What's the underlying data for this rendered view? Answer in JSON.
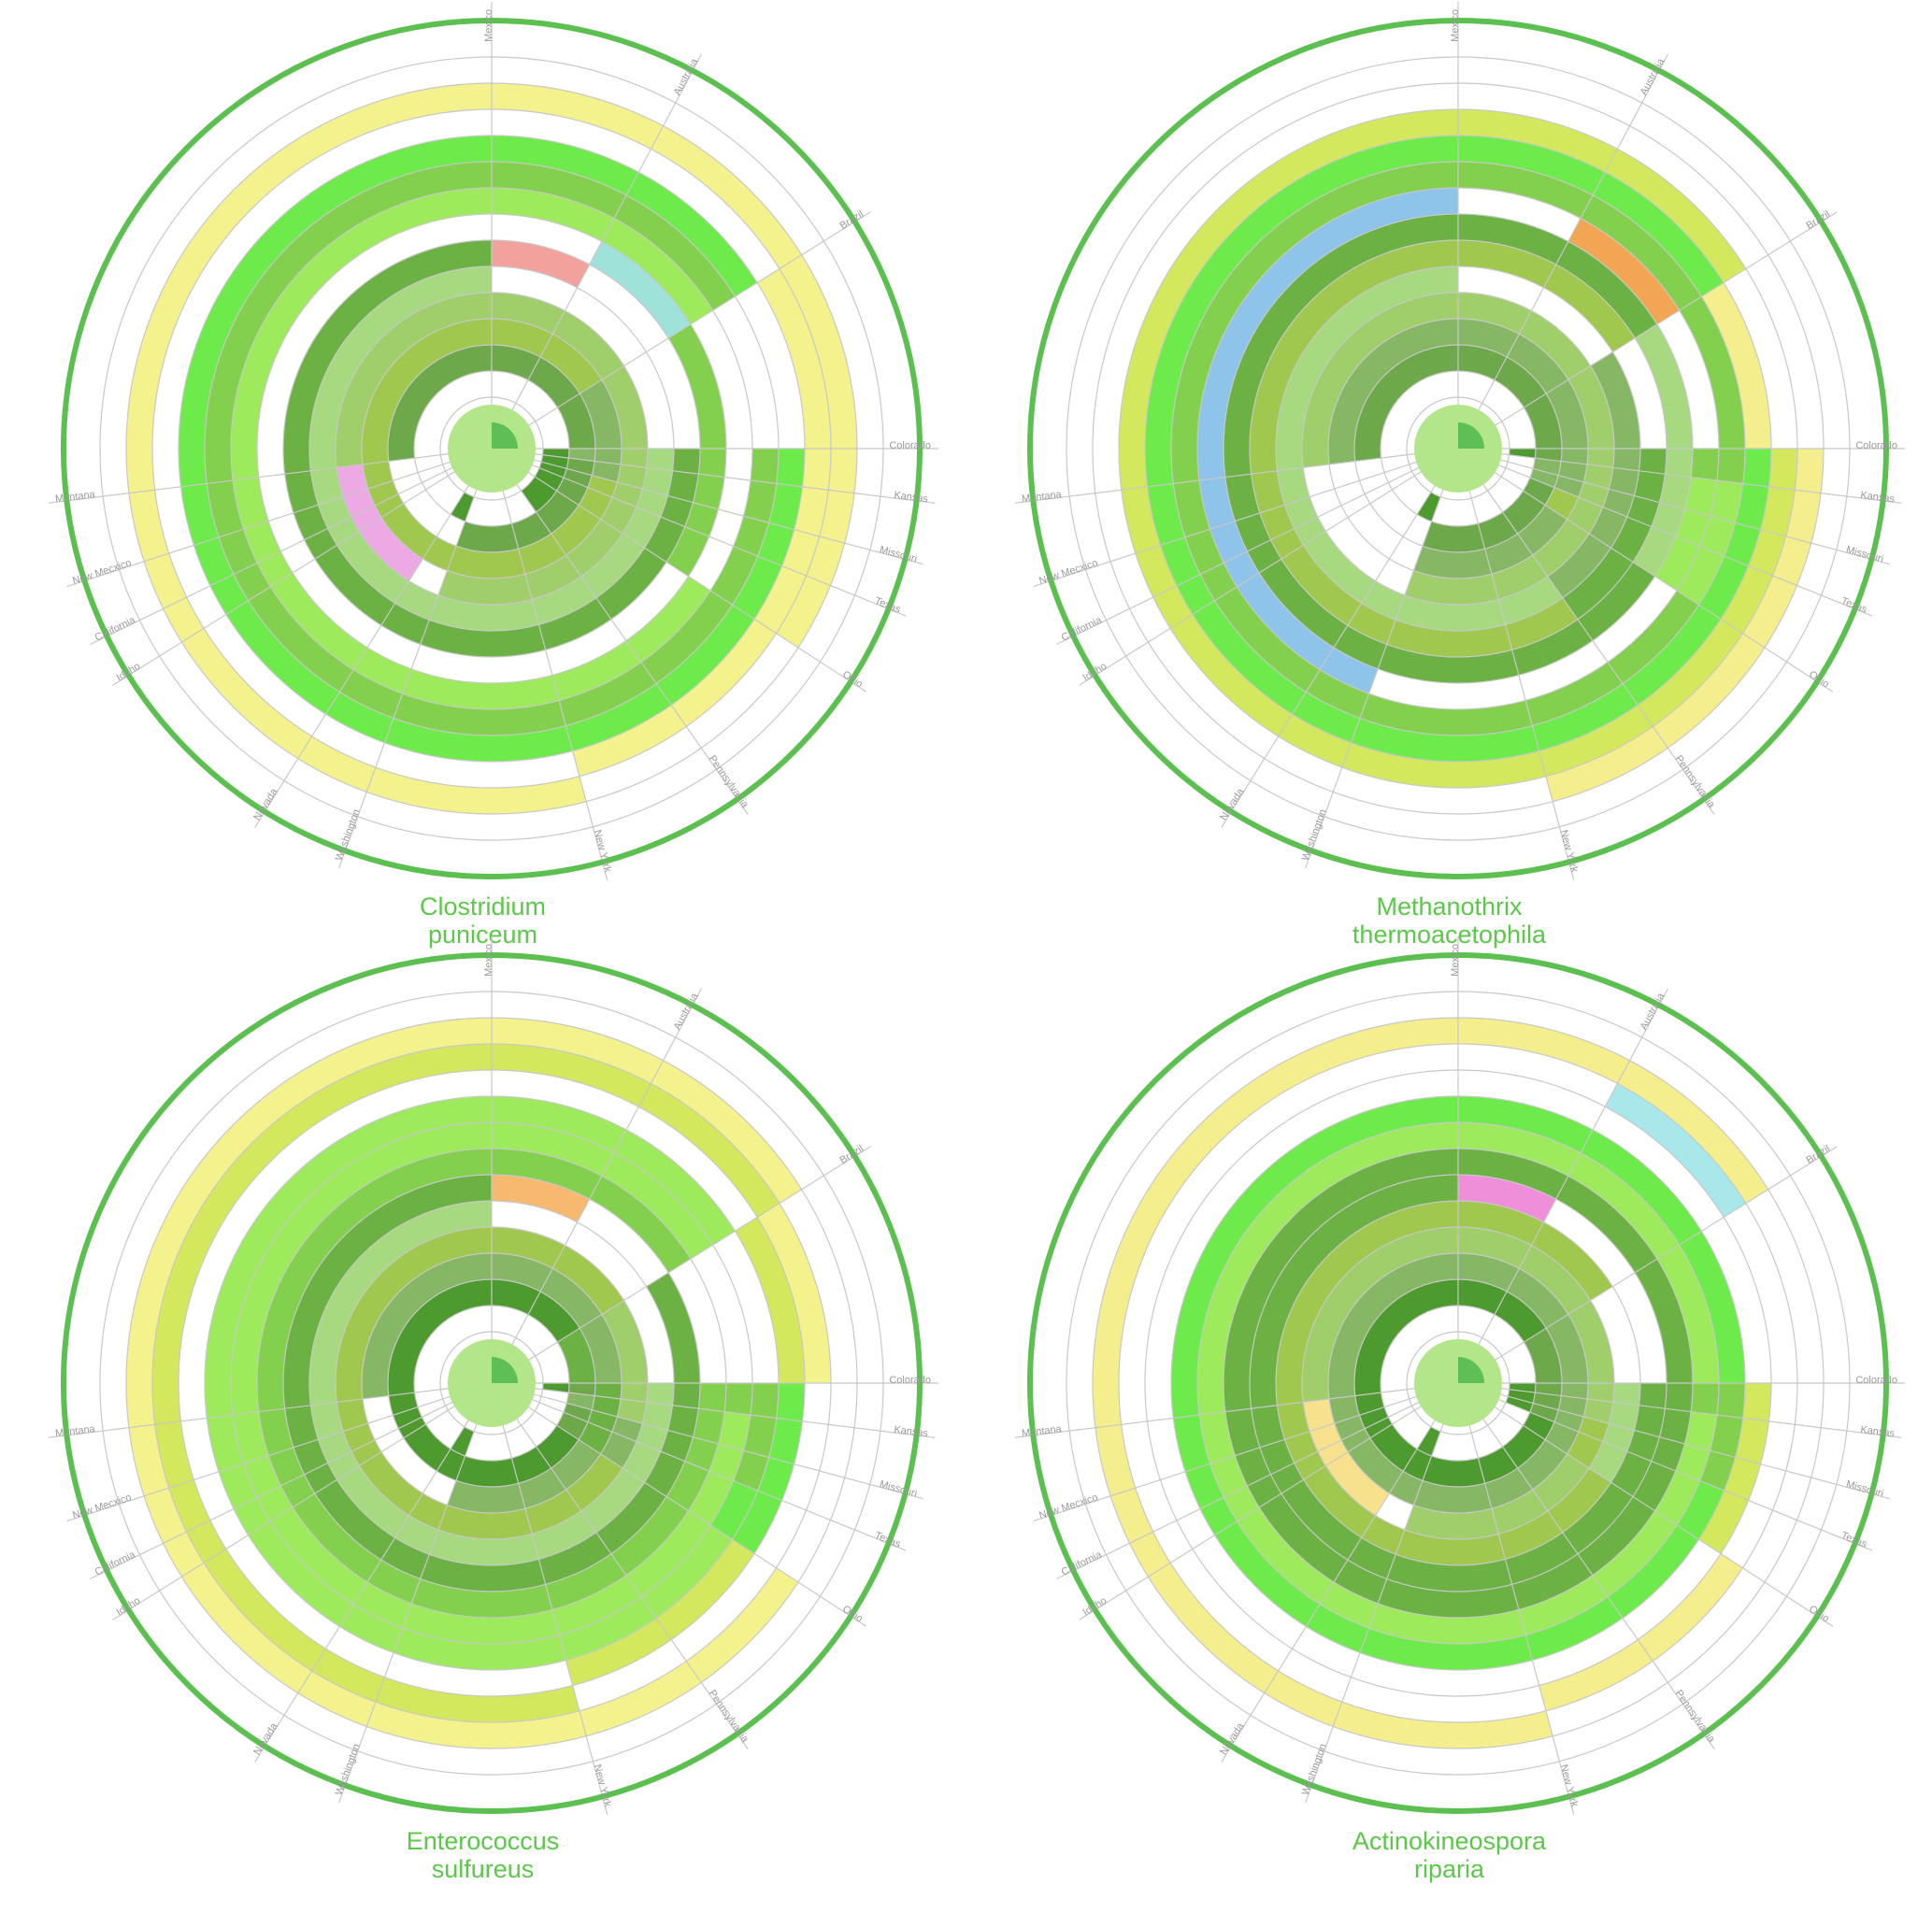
{
  "colors": {
    "outer_ring": "#5cc050",
    "grid": "#c8c8c8",
    "hub": "#b3e58b",
    "hub_marker": "#5fbf57",
    "title": "#5cc84a",
    "label": "#9a9a9a"
  },
  "categories": [
    "Mexico",
    "Australia",
    "Brazil",
    "Colorado",
    "Kansas",
    "Missouri",
    "Texas",
    "Ohio",
    "Pennsylvania",
    "New York",
    "Montana",
    "New Mecxico",
    "California",
    "Idaho",
    "Nevada",
    "Washington"
  ],
  "charts": [
    {
      "title_line1": "Clostridium",
      "title_line2": "puniceum",
      "arcs": [
        {
          "from": "Mexico",
          "to": "Australia",
          "ring": 6,
          "color": "#f2a19d"
        },
        {
          "from": "Australia",
          "to": "Brazil",
          "ring": 7,
          "color": "#9fe2da"
        },
        {
          "from": "Nevada",
          "to": "Mexico",
          "ring": 4,
          "color": "#eca9e4"
        },
        {
          "from": "Washington",
          "to": "Nevada",
          "ring": 1,
          "color": "#4d9a2e"
        },
        {
          "from": "Montana",
          "to": "Washington",
          "ring": 2,
          "color": "#6da84a"
        },
        {
          "from": "Montana",
          "to": "Washington",
          "ring": 3,
          "color": "#86b765"
        },
        {
          "from": "Montana",
          "to": "Washington",
          "ring": 4,
          "color": "#a0ce6a"
        },
        {
          "from": "Colorado",
          "to": "Kansas",
          "ring": 2,
          "color": "#86b765"
        },
        {
          "from": "Colorado",
          "to": "Texas",
          "ring": 1,
          "color": "#4d9a2e"
        },
        {
          "from": "Texas",
          "to": "Pennsylvania",
          "ring": 1,
          "color": "#4d9a2e"
        },
        {
          "from": "Kansas",
          "to": "Montana",
          "ring": 5,
          "color": "#a6d980"
        },
        {
          "from": "Kansas",
          "to": "Montana",
          "ring": 6,
          "color": "#6cb144"
        },
        {
          "from": "Missouri",
          "to": "Texas",
          "ring": 3,
          "color": "#a0c84e"
        },
        {
          "from": "Texas",
          "to": "Brazil",
          "ring": 3,
          "color": "#a0c84e"
        },
        {
          "from": "Colorado",
          "to": "Mexico",
          "ring": 5,
          "color": "#a6d980"
        },
        {
          "from": "Colorado",
          "to": "Mexico",
          "ring": 6,
          "color": "#6cb144"
        },
        {
          "from": "Brazil",
          "to": "Colorado",
          "ring": 7,
          "color": "#82d04e"
        },
        {
          "from": "Colorado",
          "to": "Kansas",
          "ring": 7,
          "color": "#82d04e"
        },
        {
          "from": "Kansas",
          "to": "Ohio",
          "ring": 7,
          "color": "#82d04e"
        },
        {
          "from": "Ohio",
          "to": "Brazil",
          "ring": 8,
          "color": "#9deb5c"
        },
        {
          "from": "Colorado",
          "to": "Kansas",
          "ring": 9,
          "color": "#82d04e"
        },
        {
          "from": "Kansas",
          "to": "Ohio",
          "ring": 9,
          "color": "#82d04e"
        },
        {
          "from": "Ohio",
          "to": "Brazil",
          "ring": 9,
          "color": "#82d04e"
        },
        {
          "from": "Colorado",
          "to": "Texas",
          "ring": 10,
          "color": "#6deb4a"
        },
        {
          "from": "Texas",
          "to": "Brazil",
          "ring": 10,
          "color": "#6deb4a"
        },
        {
          "from": "Brazil",
          "to": "Ohio",
          "ring": 11,
          "color": "#f4f28c"
        },
        {
          "from": "Ohio",
          "to": "New York",
          "ring": 11,
          "color": "#f4f28c"
        },
        {
          "from": "New York",
          "to": "Ohio",
          "ring": 12,
          "color": "#f4f28c"
        }
      ]
    },
    {
      "title_line1": "Methanothrix",
      "title_line2": "thermoacetophila",
      "arcs": [
        {
          "from": "Washington",
          "to": "Mexico",
          "ring": 8,
          "color": "#8ec3ea"
        },
        {
          "from": "Mexico",
          "to": "Australia",
          "ring": 6,
          "color": "#e8849a"
        },
        {
          "from": "Australia",
          "to": "Brazil",
          "ring": 8,
          "color": "#f2a653"
        },
        {
          "from": "Brazil",
          "to": "Colorado",
          "ring": 10,
          "color": "#f4ee8c"
        },
        {
          "from": "Washington",
          "to": "Nevada",
          "ring": 1,
          "color": "#4d9a2e"
        },
        {
          "from": "Montana",
          "to": "Washington",
          "ring": 2,
          "color": "#6da84a"
        },
        {
          "from": "Montana",
          "to": "Washington",
          "ring": 3,
          "color": "#86b765"
        },
        {
          "from": "Montana",
          "to": "Washington",
          "ring": 4,
          "color": "#a0ce6a"
        },
        {
          "from": "Colorado",
          "to": "Kansas",
          "ring": 1,
          "color": "#4d9a2e"
        },
        {
          "from": "Kansas",
          "to": "Texas",
          "ring": 2,
          "color": "#86b765"
        },
        {
          "from": "Texas",
          "to": "Ohio",
          "ring": 3,
          "color": "#a0c84e"
        },
        {
          "from": "Kansas",
          "to": "Montana",
          "ring": 5,
          "color": "#a6d980"
        },
        {
          "from": "Kansas",
          "to": "Montana",
          "ring": 6,
          "color": "#6cb144"
        },
        {
          "from": "Colorado",
          "to": "Mexico",
          "ring": 5,
          "color": "#a6d980"
        },
        {
          "from": "Colorado",
          "to": "Mexico",
          "ring": 6,
          "color": "#6cb144"
        },
        {
          "from": "Brazil",
          "to": "Colorado",
          "ring": 5,
          "color": "#86b765"
        },
        {
          "from": "Colorado",
          "to": "Texas",
          "ring": 5,
          "color": "#86b765"
        },
        {
          "from": "Texas",
          "to": "Pennsylvania",
          "ring": 5,
          "color": "#86b765"
        },
        {
          "from": "Pennsylvania",
          "to": "Brazil",
          "ring": 6,
          "color": "#a0c84e"
        },
        {
          "from": "Brazil",
          "to": "Colorado",
          "ring": 7,
          "color": "#a6d980"
        },
        {
          "from": "Colorado",
          "to": "Ohio",
          "ring": 7,
          "color": "#a6d980"
        },
        {
          "from": "Ohio",
          "to": "Brazil",
          "ring": 7,
          "color": "#6cb144"
        },
        {
          "from": "Brazil",
          "to": "Colorado",
          "ring": 9,
          "color": "#82d04e"
        },
        {
          "from": "Colorado",
          "to": "Kansas",
          "ring": 8,
          "color": "#82d04e"
        },
        {
          "from": "Kansas",
          "to": "Ohio",
          "ring": 8,
          "color": "#9deb5c"
        },
        {
          "from": "Ohio",
          "to": "Brazil",
          "ring": 9,
          "color": "#82d04e"
        },
        {
          "from": "Colorado",
          "to": "Kansas",
          "ring": 9,
          "color": "#82d04e"
        },
        {
          "from": "Kansas",
          "to": "Ohio",
          "ring": 9,
          "color": "#9deb5c"
        },
        {
          "from": "Colorado",
          "to": "Texas",
          "ring": 10,
          "color": "#6deb4a"
        },
        {
          "from": "Texas",
          "to": "Ohio",
          "ring": 10,
          "color": "#6deb4a"
        },
        {
          "from": "Ohio",
          "to": "Brazil",
          "ring": 10,
          "color": "#6deb4a"
        },
        {
          "from": "Colorado",
          "to": "Brazil",
          "ring": 11,
          "color": "#d3e85c"
        },
        {
          "from": "Ohio",
          "to": "New York",
          "ring": 11,
          "color": "#d3e85c"
        },
        {
          "from": "Colorado",
          "to": "New York",
          "ring": 12,
          "color": "#f4ee8c"
        }
      ]
    },
    {
      "title_line1": "Enterococcus",
      "title_line2": "sulfureus",
      "arcs": [
        {
          "from": "Washington",
          "to": "Mexico",
          "ring": 7,
          "color": "#d4a6f0"
        },
        {
          "from": "Mexico",
          "to": "Australia",
          "ring": 6,
          "color": "#f7b870"
        },
        {
          "from": "Australia",
          "to": "Brazil",
          "ring": 8,
          "color": "#95cce8"
        },
        {
          "from": "Brazil",
          "to": "Colorado",
          "ring": 11,
          "color": "#f4f28c"
        },
        {
          "from": "Washington",
          "to": "Nevada",
          "ring": 1,
          "color": "#4d9a2e"
        },
        {
          "from": "Montana",
          "to": "Washington",
          "ring": 2,
          "color": "#6da84a"
        },
        {
          "from": "Montana",
          "to": "Washington",
          "ring": 3,
          "color": "#86b765"
        },
        {
          "from": "Montana",
          "to": "Washington",
          "ring": 4,
          "color": "#a0ce6a"
        },
        {
          "from": "Colorado",
          "to": "Kansas",
          "ring": 1,
          "color": "#4d9a2e"
        },
        {
          "from": "Kansas",
          "to": "Missouri",
          "ring": 2,
          "color": "#86b765"
        },
        {
          "from": "Colorado",
          "to": "Ohio",
          "ring": 3,
          "color": "#6cb144"
        },
        {
          "from": "Ohio",
          "to": "Brazil",
          "ring": 2,
          "color": "#4d9a2e"
        },
        {
          "from": "Brazil",
          "to": "Colorado",
          "ring": 2,
          "color": "#6cb144"
        },
        {
          "from": "Colorado",
          "to": "Missouri",
          "ring": 3,
          "color": "#6cb144"
        },
        {
          "from": "Missouri",
          "to": "Ohio",
          "ring": 4,
          "color": "#86b765"
        },
        {
          "from": "Ohio",
          "to": "Brazil",
          "ring": 4,
          "color": "#a0c84e"
        },
        {
          "from": "Kansas",
          "to": "Montana",
          "ring": 5,
          "color": "#a6d980"
        },
        {
          "from": "Kansas",
          "to": "Montana",
          "ring": 6,
          "color": "#6cb144"
        },
        {
          "from": "Colorado",
          "to": "Mexico",
          "ring": 5,
          "color": "#a6d980"
        },
        {
          "from": "Colorado",
          "to": "Mexico",
          "ring": 6,
          "color": "#6cb144"
        },
        {
          "from": "Brazil",
          "to": "Colorado",
          "ring": 6,
          "color": "#6cb144"
        },
        {
          "from": "Colorado",
          "to": "Brazil",
          "ring": 7,
          "color": "#82d04e"
        },
        {
          "from": "Colorado",
          "to": "Kansas",
          "ring": 8,
          "color": "#82d04e"
        },
        {
          "from": "Kansas",
          "to": "Ohio",
          "ring": 8,
          "color": "#9deb5c"
        },
        {
          "from": "Ohio",
          "to": "Brazil",
          "ring": 8,
          "color": "#9deb5c"
        },
        {
          "from": "Colorado",
          "to": "Texas",
          "ring": 9,
          "color": "#82d04e"
        },
        {
          "from": "Texas",
          "to": "Ohio",
          "ring": 9,
          "color": "#6deb4a"
        },
        {
          "from": "Ohio",
          "to": "Brazil",
          "ring": 9,
          "color": "#9deb5c"
        },
        {
          "from": "Brazil",
          "to": "Colorado",
          "ring": 10,
          "color": "#d3e85c"
        },
        {
          "from": "Colorado",
          "to": "Ohio",
          "ring": 10,
          "color": "#6deb4a"
        },
        {
          "from": "Ohio",
          "to": "New York",
          "ring": 10,
          "color": "#d3e85c"
        },
        {
          "from": "New York",
          "to": "Brazil",
          "ring": 11,
          "color": "#d3e85c"
        },
        {
          "from": "Ohio",
          "to": "Brazil",
          "ring": 12,
          "color": "#f4f28c"
        }
      ]
    },
    {
      "title_line1": "Actinokineospora",
      "title_line2": "riparia",
      "arcs": [
        {
          "from": "Australia",
          "to": "Brazil",
          "ring": 11,
          "color": "#a8e8ea"
        },
        {
          "from": "Mexico",
          "to": "Australia",
          "ring": 6,
          "color": "#f08fd9"
        },
        {
          "from": "Nevada",
          "to": "Mexico",
          "ring": 4,
          "color": "#f7e18c"
        },
        {
          "from": "Washington",
          "to": "Nevada",
          "ring": 1,
          "color": "#4d9a2e"
        },
        {
          "from": "Montana",
          "to": "Washington",
          "ring": 2,
          "color": "#6da84a"
        },
        {
          "from": "Montana",
          "to": "Washington",
          "ring": 3,
          "color": "#86b765"
        },
        {
          "from": "Montana",
          "to": "Washington",
          "ring": 4,
          "color": "#a0ce6a"
        },
        {
          "from": "Colorado",
          "to": "Kansas",
          "ring": 1,
          "color": "#4d9a2e"
        },
        {
          "from": "Kansas",
          "to": "Texas",
          "ring": 1,
          "color": "#4d9a2e"
        },
        {
          "from": "Texas",
          "to": "Brazil",
          "ring": 2,
          "color": "#4d9a2e"
        },
        {
          "from": "Kansas",
          "to": "Ohio",
          "ring": 3,
          "color": "#86b765"
        },
        {
          "from": "Ohio",
          "to": "Brazil",
          "ring": 3,
          "color": "#86b765"
        },
        {
          "from": "Kansas",
          "to": "Montana",
          "ring": 5,
          "color": "#a6d980"
        },
        {
          "from": "Kansas",
          "to": "Montana",
          "ring": 6,
          "color": "#6cb144"
        },
        {
          "from": "Colorado",
          "to": "Mexico",
          "ring": 5,
          "color": "#a6d980"
        },
        {
          "from": "Colorado",
          "to": "Mexico",
          "ring": 6,
          "color": "#6cb144"
        },
        {
          "from": "Missouri",
          "to": "Ohio",
          "ring": 4,
          "color": "#a0c84e"
        },
        {
          "from": "Ohio",
          "to": "Brazil",
          "ring": 5,
          "color": "#a0c84e"
        },
        {
          "from": "Brazil",
          "to": "Colorado",
          "ring": 7,
          "color": "#6cb144"
        },
        {
          "from": "Colorado",
          "to": "Ohio",
          "ring": 7,
          "color": "#6cb144"
        },
        {
          "from": "Ohio",
          "to": "Brazil",
          "ring": 7,
          "color": "#6cb144"
        },
        {
          "from": "Brazil",
          "to": "Colorado",
          "ring": 8,
          "color": "#9deb5c"
        },
        {
          "from": "Colorado",
          "to": "Kansas",
          "ring": 8,
          "color": "#82d04e"
        },
        {
          "from": "Kansas",
          "to": "Ohio",
          "ring": 8,
          "color": "#9deb5c"
        },
        {
          "from": "Ohio",
          "to": "Brazil",
          "ring": 8,
          "color": "#9deb5c"
        },
        {
          "from": "Colorado",
          "to": "Texas",
          "ring": 9,
          "color": "#82d04e"
        },
        {
          "from": "Texas",
          "to": "Ohio",
          "ring": 9,
          "color": "#6deb4a"
        },
        {
          "from": "Ohio",
          "to": "Brazil",
          "ring": 9,
          "color": "#6deb4a"
        },
        {
          "from": "Brazil",
          "to": "Colorado",
          "ring": 9,
          "color": "#6deb4a"
        },
        {
          "from": "Colorado",
          "to": "Ohio",
          "ring": 10,
          "color": "#d3e85c"
        },
        {
          "from": "Ohio",
          "to": "New York",
          "ring": 11,
          "color": "#f4ee8c"
        },
        {
          "from": "New York",
          "to": "Brazil",
          "ring": 12,
          "color": "#f4ee8c"
        }
      ]
    }
  ]
}
